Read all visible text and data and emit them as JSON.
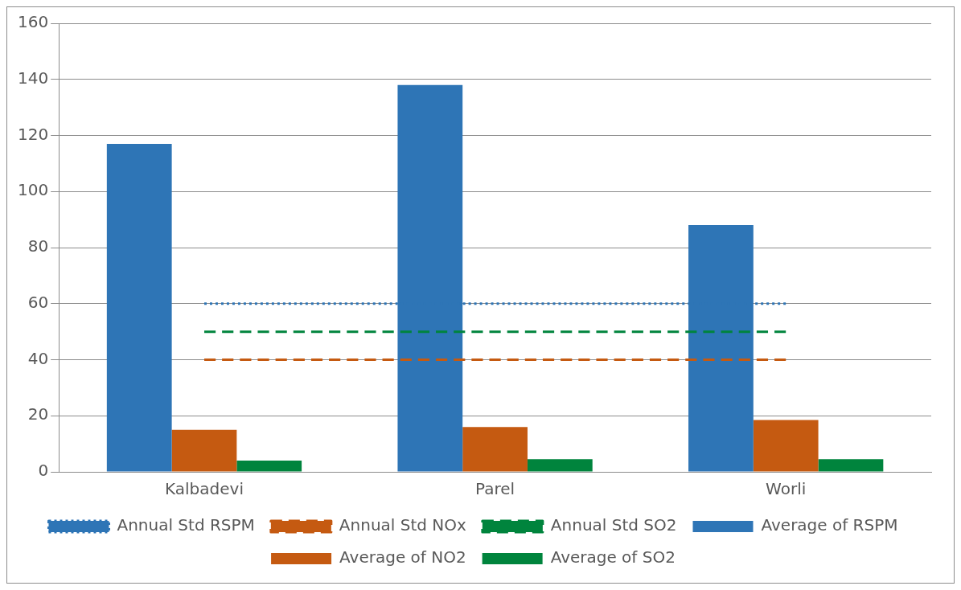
{
  "chart_data": {
    "type": "bar",
    "categories": [
      "Kalbadevi",
      "Parel",
      "Worli"
    ],
    "series": [
      {
        "name": "Average of RSPM",
        "color": "#2e75b6",
        "values": [
          117,
          138,
          88
        ]
      },
      {
        "name": "Average of NO2",
        "color": "#c55a11",
        "values": [
          15,
          16,
          18.5
        ]
      },
      {
        "name": "Average of SO2",
        "color": "#00843d",
        "values": [
          4,
          4.5,
          4.5
        ]
      },
      {
        "name": "Annual Std RSPM",
        "type": "line",
        "color": "#2e75b6",
        "line_style": "dotted",
        "values": [
          60,
          60,
          60
        ]
      },
      {
        "name": "Annual Std NOx",
        "type": "line",
        "color": "#c55a11",
        "line_style": "dashed",
        "values": [
          40,
          40,
          40
        ]
      },
      {
        "name": "Annual Std SO2",
        "type": "line",
        "color": "#00843d",
        "line_style": "dashed",
        "values": [
          50,
          50,
          50
        ]
      }
    ],
    "ylim": [
      0,
      160
    ],
    "yticks": [
      0,
      20,
      40,
      60,
      80,
      100,
      120,
      140,
      160
    ],
    "grid": "y",
    "legend": "bottom",
    "marker": "none"
  }
}
